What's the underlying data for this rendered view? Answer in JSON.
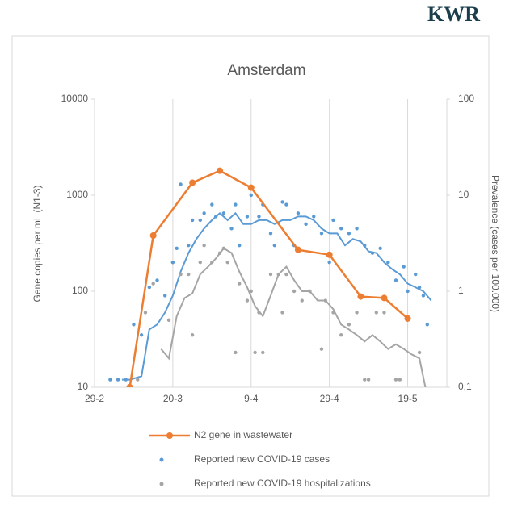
{
  "logo": "KWR",
  "chart_data": {
    "type": "line",
    "title": "Amsterdam",
    "y_label": "Gene copies per mL (N1-3)",
    "y2_label": "Prevalence (cases per 100.000)",
    "log_scale": true,
    "grid": "x",
    "legend": "bottom",
    "xlim": [
      "29-2",
      "29-5"
    ],
    "xticks": [
      "29-2",
      "20-3",
      "9-4",
      "29-4",
      "19-5"
    ],
    "ylim": [
      10,
      10000
    ],
    "yticks": [
      10,
      100,
      1000,
      10000
    ],
    "y2lim": [
      0.1,
      100
    ],
    "y2ticks": [
      {
        "value": 0.1,
        "label": "0,1"
      },
      1,
      10,
      100
    ],
    "series": [
      {
        "name": "N2 gene in wastewater",
        "color": "#ed7d31",
        "style": "line+markers",
        "x": [
          "9-3",
          "15-3",
          "25-3",
          "1-4",
          "9-4",
          "21-4",
          "29-4",
          "7-5",
          "13-5",
          "19-5"
        ],
        "values": [
          10,
          380,
          1350,
          1800,
          1200,
          270,
          240,
          88,
          85,
          52
        ]
      },
      {
        "name": "Reported new COVID-19 cases",
        "color": "#5b9bd5",
        "style": "dots",
        "axis": "y2",
        "x": [
          "4-3",
          "6-3",
          "8-3",
          "10-3",
          "12-3",
          "14-3",
          "16-3",
          "18-3",
          "20-3",
          "21-3",
          "22-3",
          "24-3",
          "25-3",
          "27-3",
          "28-3",
          "30-3",
          "31-3",
          "2-4",
          "4-4",
          "5-4",
          "6-4",
          "8-4",
          "9-4",
          "11-4",
          "12-4",
          "14-4",
          "15-4",
          "17-4",
          "18-4",
          "20-4",
          "21-4",
          "23-4",
          "25-4",
          "27-4",
          "29-4",
          "30-4",
          "2-5",
          "4-5",
          "6-5",
          "8-5",
          "10-5",
          "12-5",
          "14-5",
          "16-5",
          "18-5",
          "19-5",
          "21-5",
          "22-5",
          "23-5",
          "24-5"
        ],
        "values": [
          0.12,
          0.12,
          0.12,
          0.45,
          0.35,
          1.1,
          1.3,
          0.9,
          2,
          2.8,
          13,
          3,
          5.5,
          5.5,
          6.5,
          8,
          6,
          6.5,
          4.5,
          8,
          3,
          6,
          10,
          6,
          8,
          4,
          3,
          8.5,
          8,
          3,
          6.5,
          5,
          6,
          4,
          2,
          5.5,
          4.5,
          4,
          4.5,
          3,
          2.5,
          2.8,
          2,
          1.3,
          1.8,
          1,
          1.5,
          1.1,
          0.9,
          0.45
        ]
      },
      {
        "name": "Reported new COVID-19 hospitalizations",
        "color": "#a5a5a5",
        "style": "dots",
        "axis": "y2",
        "x": [
          "11-3",
          "13-3",
          "15-3",
          "19-3",
          "20-3",
          "22-3",
          "24-3",
          "25-3",
          "27-3",
          "28-3",
          "30-3",
          "1-4",
          "2-4",
          "3-4",
          "5-4",
          "6-4",
          "8-4",
          "9-4",
          "10-4",
          "11-4",
          "12-4",
          "14-4",
          "16-4",
          "17-4",
          "18-4",
          "20-4",
          "22-4",
          "24-4",
          "27-4",
          "28-4",
          "30-4",
          "2-5",
          "4-5",
          "6-5",
          "8-5",
          "9-5",
          "11-5",
          "13-5",
          "16-5",
          "17-5",
          "19-5",
          "22-5"
        ],
        "values": [
          0.12,
          0.6,
          1.2,
          0.5,
          2,
          1.5,
          1.5,
          0.35,
          2,
          3,
          2,
          2.5,
          2.8,
          2,
          0.23,
          1.2,
          0.8,
          1,
          0.23,
          0.6,
          0.23,
          1.5,
          1.5,
          0.6,
          1.5,
          1,
          0.8,
          1,
          0.25,
          0.8,
          0.6,
          0.35,
          0.45,
          0.6,
          0.12,
          0.12,
          0.6,
          0.6,
          0.12,
          0.12,
          0.5,
          0.23
        ]
      },
      {
        "color": "#5b9bd5",
        "style": "line",
        "axis": "y2",
        "x": [
          "7-3",
          "9-3",
          "12-3",
          "14-3",
          "16-3",
          "18-3",
          "20-3",
          "22-3",
          "24-3",
          "26-3",
          "28-3",
          "30-3",
          "1-4",
          "3-4",
          "5-4",
          "7-4",
          "9-4",
          "11-4",
          "13-4",
          "15-4",
          "17-4",
          "19-4",
          "21-4",
          "23-4",
          "25-4",
          "27-4",
          "29-4",
          "1-5",
          "3-5",
          "5-5",
          "7-5",
          "9-5",
          "11-5",
          "13-5",
          "15-5",
          "17-5",
          "19-5",
          "21-5",
          "23-5",
          "25-5"
        ],
        "values": [
          0.12,
          0.12,
          0.13,
          0.4,
          0.45,
          0.6,
          0.9,
          1.6,
          2.5,
          3.5,
          4.5,
          5.5,
          6.5,
          5.5,
          6.5,
          5,
          5,
          5.5,
          5.5,
          5,
          5.5,
          5.5,
          6,
          6,
          5.5,
          4.5,
          4,
          4,
          3,
          3.5,
          3.3,
          2.6,
          2.5,
          2,
          1.7,
          1.5,
          1.2,
          1.1,
          1,
          0.8
        ]
      },
      {
        "color": "#a5a5a5",
        "style": "line",
        "axis": "y2",
        "x": [
          "17-3",
          "19-3",
          "21-3",
          "23-3",
          "25-3",
          "27-3",
          "29-3",
          "31-3",
          "2-4",
          "4-4",
          "6-4",
          "8-4",
          "10-4",
          "12-4",
          "14-4",
          "16-4",
          "18-4",
          "20-4",
          "22-4",
          "24-4",
          "26-4",
          "28-4",
          "30-4",
          "2-5",
          "4-5",
          "6-5",
          "8-5",
          "10-5",
          "12-5",
          "14-5",
          "16-5",
          "18-5",
          "20-5",
          "22-5",
          "24-5"
        ],
        "values": [
          0.25,
          0.2,
          0.55,
          0.85,
          0.95,
          1.5,
          1.8,
          2.2,
          2.8,
          2.5,
          1.6,
          1.1,
          0.7,
          0.55,
          0.9,
          1.5,
          1.8,
          1.3,
          1,
          1,
          0.8,
          0.8,
          0.65,
          0.45,
          0.4,
          0.35,
          0.3,
          0.35,
          0.3,
          0.25,
          0.28,
          0.25,
          0.22,
          0.2,
          0.08
        ]
      }
    ]
  }
}
